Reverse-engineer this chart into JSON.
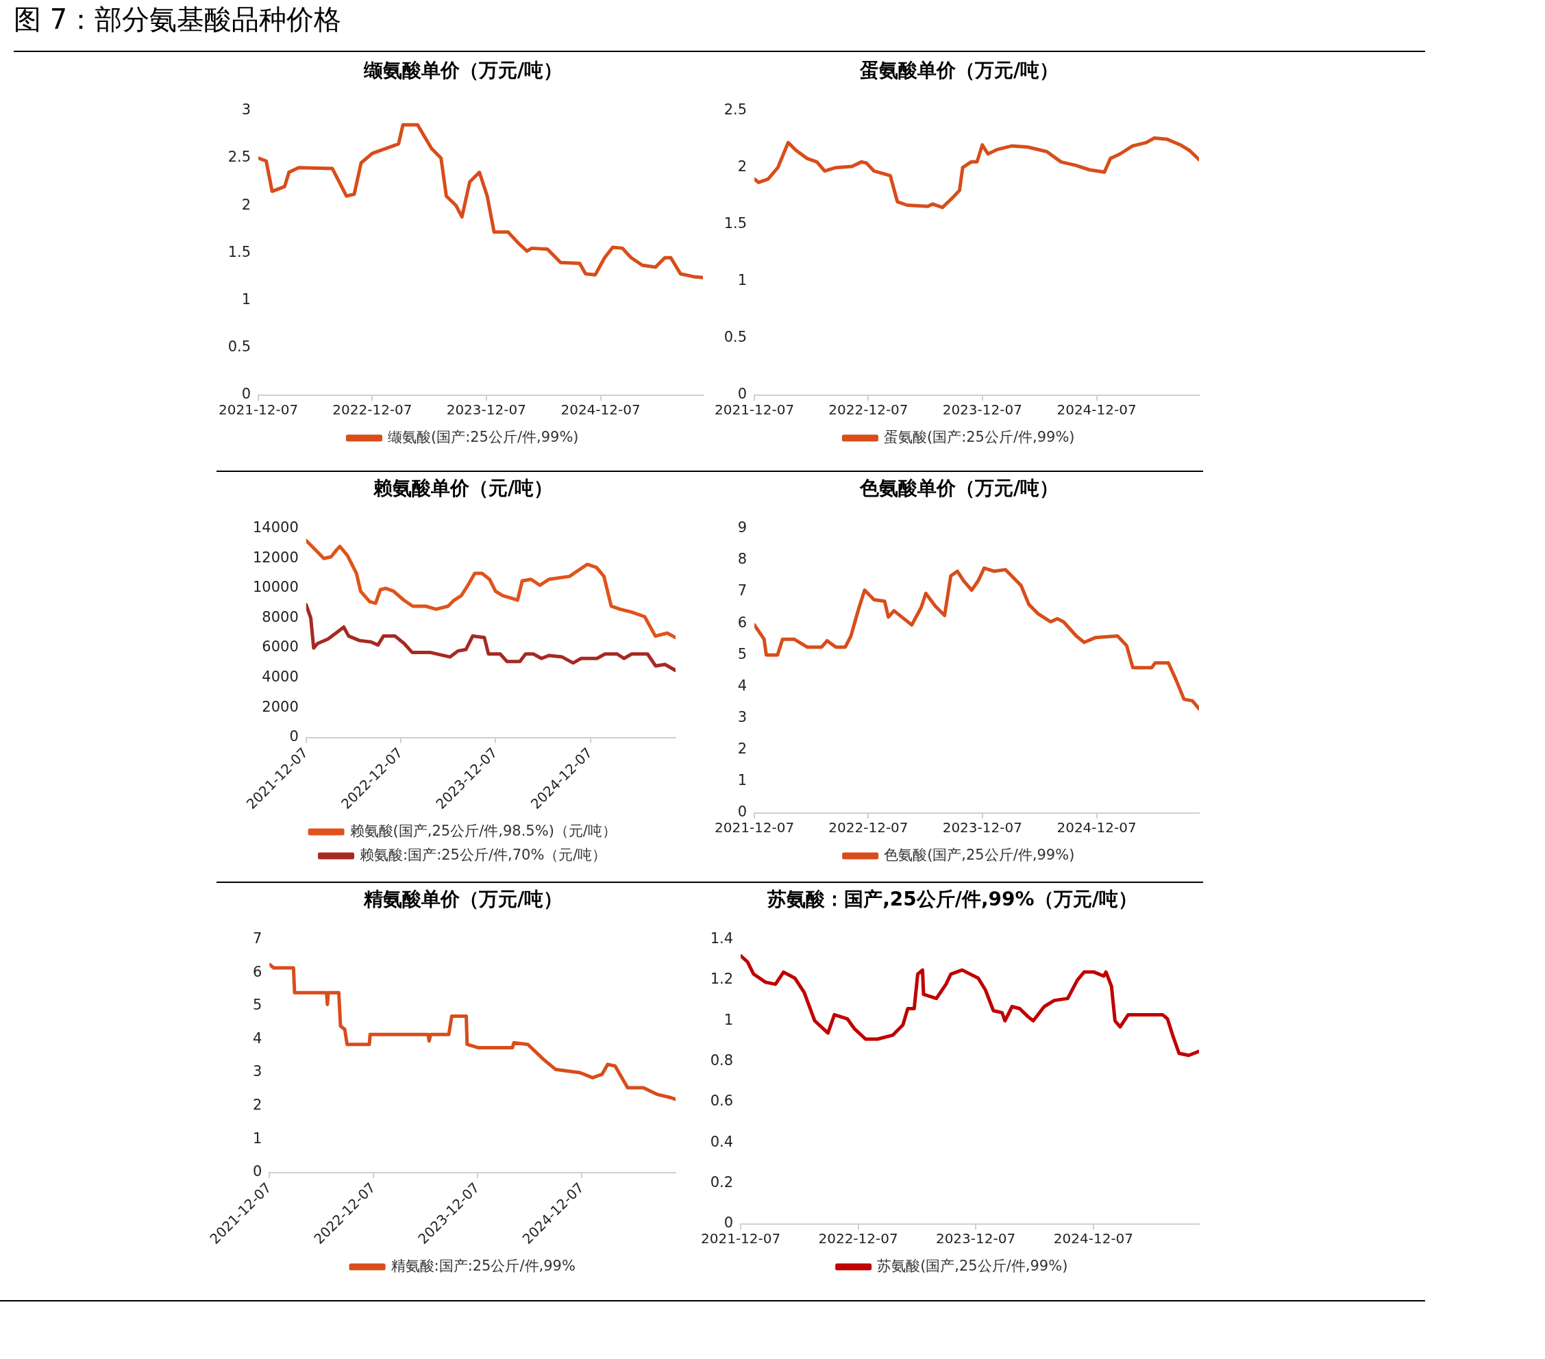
{
  "chart_data": [
    {
      "type": "line",
      "title": "缬氨酸单价（万元/吨）",
      "annotations": [
        "图 7：部分氨基酸品种价格"
      ],
      "legend": "bottom",
      "marker": "none",
      "xlim": [
        "2021-12-07",
        "2025-10-31"
      ],
      "xticks": [
        "2021-12-07",
        "2022-12-07",
        "2023-12-07",
        "2024-12-07"
      ],
      "ylim": [
        0,
        3
      ],
      "yticks": [
        0,
        0.5,
        1,
        1.5,
        2,
        2.5,
        3
      ],
      "series": [
        {
          "name": "缬氨酸(国产:25公斤/件,99%)",
          "color": "#d84d1a",
          "x": [
            "2021-12-07",
            "2022-01-01",
            "2022-01-20",
            "2022-03-01",
            "2022-03-15",
            "2022-04-15",
            "2022-08-01",
            "2022-09-15",
            "2022-10-10",
            "2022-11-01",
            "2022-12-07",
            "2023-03-01",
            "2023-03-15",
            "2023-05-01",
            "2023-06-15",
            "2023-07-15",
            "2023-08-01",
            "2023-09-01",
            "2023-09-20",
            "2023-10-15",
            "2023-11-15",
            "2023-12-10",
            "2024-01-01",
            "2024-02-15",
            "2024-03-20",
            "2024-04-15",
            "2024-05-01",
            "2024-06-20",
            "2024-08-01",
            "2024-10-01",
            "2024-10-20",
            "2024-11-20",
            "2024-12-20",
            "2025-01-15",
            "2025-02-15",
            "2025-03-15",
            "2025-04-20",
            "2025-06-01",
            "2025-07-01",
            "2025-07-20",
            "2025-08-20",
            "2025-10-01",
            "2025-10-31"
          ],
          "values": [
            2.5,
            2.47,
            2.15,
            2.2,
            2.35,
            2.4,
            2.39,
            2.1,
            2.12,
            2.45,
            2.55,
            2.65,
            2.85,
            2.85,
            2.6,
            2.5,
            2.1,
            2.0,
            1.88,
            2.25,
            2.35,
            2.1,
            1.72,
            1.72,
            1.6,
            1.52,
            1.55,
            1.54,
            1.4,
            1.39,
            1.28,
            1.27,
            1.45,
            1.56,
            1.55,
            1.45,
            1.37,
            1.35,
            1.45,
            1.45,
            1.28,
            1.25,
            1.24
          ]
        }
      ]
    },
    {
      "type": "line",
      "title": "蛋氨酸单价（万元/吨）",
      "legend": "bottom",
      "marker": "none",
      "xlim": [
        "2021-12-07",
        "2025-10-31"
      ],
      "xticks": [
        "2021-12-07",
        "2022-12-07",
        "2023-12-07",
        "2024-12-07"
      ],
      "ylim": [
        0,
        2.5
      ],
      "yticks": [
        0,
        0.5,
        1,
        1.5,
        2,
        2.5
      ],
      "series": [
        {
          "name": "蛋氨酸(国产:25公斤/件,99%)",
          "color": "#d84d1a",
          "x": [
            "2021-12-07",
            "2021-12-20",
            "2022-01-20",
            "2022-02-20",
            "2022-03-25",
            "2022-04-20",
            "2022-05-25",
            "2022-06-25",
            "2022-07-20",
            "2022-08-25",
            "2022-10-15",
            "2022-11-15",
            "2022-12-01",
            "2022-12-25",
            "2023-02-15",
            "2023-03-10",
            "2023-04-10",
            "2023-06-15",
            "2023-07-01",
            "2023-08-01",
            "2023-09-01",
            "2023-09-25",
            "2023-10-05",
            "2023-11-01",
            "2023-11-20",
            "2023-12-07",
            "2023-12-25",
            "2024-01-25",
            "2024-03-10",
            "2024-05-01",
            "2024-07-01",
            "2024-08-15",
            "2024-10-01",
            "2024-11-15",
            "2025-01-01",
            "2025-01-20",
            "2025-02-20",
            "2025-04-01",
            "2025-05-15",
            "2025-06-10",
            "2025-07-20",
            "2025-09-01",
            "2025-10-01",
            "2025-10-31"
          ],
          "values": [
            1.9,
            1.87,
            1.9,
            2.0,
            2.22,
            2.15,
            2.08,
            2.05,
            1.97,
            2.0,
            2.01,
            2.05,
            2.04,
            1.97,
            1.93,
            1.7,
            1.67,
            1.66,
            1.68,
            1.65,
            1.73,
            1.8,
            2.0,
            2.05,
            2.05,
            2.2,
            2.12,
            2.16,
            2.19,
            2.18,
            2.14,
            2.05,
            2.02,
            1.98,
            1.96,
            2.08,
            2.12,
            2.19,
            2.22,
            2.26,
            2.25,
            2.2,
            2.15,
            2.07
          ]
        }
      ]
    },
    {
      "type": "line",
      "title": "赖氨酸单价（元/吨）",
      "legend": "bottom",
      "marker": "none",
      "xlim": [
        "2021-12-07",
        "2025-10-31"
      ],
      "xticks": [
        "2021-12-07",
        "2022-12-07",
        "2023-12-07",
        "2024-12-07"
      ],
      "ylim": [
        0,
        14000
      ],
      "yticks": [
        0,
        2000,
        4000,
        6000,
        8000,
        10000,
        12000,
        14000
      ],
      "series": [
        {
          "name": "赖氨酸(国产,25公斤/件,98.5%)（元/吨）",
          "color": "#e0531b",
          "x": [
            "2021-12-07",
            "2022-01-16",
            "2022-02-13",
            "2022-03-13",
            "2022-04-05",
            "2022-04-16",
            "2022-05-15",
            "2022-06-19",
            "2022-07-05",
            "2022-08-09",
            "2022-09-01",
            "2022-09-19",
            "2022-10-10",
            "2022-11-09",
            "2022-12-19",
            "2023-01-22",
            "2023-03-13",
            "2023-04-22",
            "2023-06-07",
            "2023-06-30",
            "2023-07-28",
            "2023-08-26",
            "2023-09-18",
            "2023-10-16",
            "2023-11-14",
            "2023-12-07",
            "2024-01-04",
            "2024-02-14",
            "2024-03-01",
            "2024-03-19",
            "2024-04-22",
            "2024-05-26",
            "2024-06-30",
            "2024-09-18",
            "2024-10-04",
            "2024-11-25",
            "2024-12-30",
            "2025-01-28",
            "2025-02-25",
            "2025-03-31",
            "2025-05-15",
            "2025-07-04",
            "2025-08-14",
            "2025-09-29",
            "2025-10-31"
          ],
          "values": [
            13200,
            12500,
            12000,
            12100,
            12600,
            12800,
            12200,
            11000,
            9800,
            9100,
            9000,
            9900,
            10000,
            9800,
            9200,
            8800,
            8800,
            8600,
            8800,
            9200,
            9500,
            10300,
            11000,
            11000,
            10600,
            9800,
            9500,
            9300,
            9200,
            10500,
            10600,
            10200,
            10600,
            10800,
            11000,
            11600,
            11400,
            10800,
            8800,
            8600,
            8400,
            8100,
            6800,
            7000,
            6700
          ]
        },
        {
          "name": "赖氨酸:国产:25公斤/件,70%（元/吨）",
          "color": "#a52a22",
          "x": [
            "2021-12-07",
            "2021-12-25",
            "2022-01-05",
            "2022-01-20",
            "2022-03-01",
            "2022-04-01",
            "2022-05-01",
            "2022-05-20",
            "2022-07-01",
            "2022-08-15",
            "2022-09-10",
            "2022-10-01",
            "2022-11-15",
            "2022-12-20",
            "2023-01-20",
            "2023-04-01",
            "2023-06-15",
            "2023-07-15",
            "2023-08-15",
            "2023-09-10",
            "2023-10-25",
            "2023-11-10",
            "2023-12-25",
            "2024-01-20",
            "2024-03-10",
            "2024-04-01",
            "2024-05-01",
            "2024-06-01",
            "2024-07-01",
            "2024-08-20",
            "2024-10-01",
            "2024-11-01",
            "2025-01-01",
            "2025-02-01",
            "2025-03-20",
            "2025-04-15",
            "2025-05-15",
            "2025-07-15",
            "2025-08-15",
            "2025-09-20",
            "2025-10-31"
          ],
          "values": [
            8900,
            8000,
            6000,
            6300,
            6600,
            7000,
            7400,
            6800,
            6500,
            6400,
            6200,
            6800,
            6800,
            6300,
            5700,
            5700,
            5400,
            5800,
            5900,
            6800,
            6700,
            5600,
            5600,
            5100,
            5100,
            5600,
            5600,
            5300,
            5500,
            5400,
            5000,
            5300,
            5300,
            5600,
            5600,
            5300,
            5600,
            5600,
            4800,
            4900,
            4500
          ]
        }
      ]
    },
    {
      "type": "line",
      "title": "色氨酸单价（万元/吨）",
      "legend": "bottom",
      "marker": "none",
      "xlim": [
        "2021-12-07",
        "2025-10-31"
      ],
      "xticks": [
        "2021-12-07",
        "2022-12-07",
        "2023-12-07",
        "2024-12-07"
      ],
      "ylim": [
        0,
        9
      ],
      "yticks": [
        0,
        1,
        2,
        3,
        4,
        5,
        6,
        7,
        8,
        9
      ],
      "series": [
        {
          "name": "色氨酸(国产,25公斤/件,99%)",
          "color": "#d84d1a",
          "x": [
            "2021-12-07",
            "2022-01-07",
            "2022-01-14",
            "2022-02-19",
            "2022-03-07",
            "2022-04-13",
            "2022-05-25",
            "2022-07-10",
            "2022-07-28",
            "2022-08-25",
            "2022-09-24",
            "2022-10-12",
            "2022-11-07",
            "2022-11-25",
            "2022-12-25",
            "2023-01-28",
            "2023-02-09",
            "2023-02-27",
            "2023-04-25",
            "2023-05-25",
            "2023-06-09",
            "2023-07-09",
            "2023-08-08",
            "2023-08-28",
            "2023-09-18",
            "2023-10-08",
            "2023-11-03",
            "2023-11-24",
            "2023-12-13",
            "2024-01-13",
            "2024-02-19",
            "2024-03-25",
            "2024-04-09",
            "2024-05-04",
            "2024-06-03",
            "2024-07-13",
            "2024-08-03",
            "2024-08-23",
            "2024-10-03",
            "2024-10-28",
            "2024-12-03",
            "2025-02-12",
            "2025-03-13",
            "2025-04-02",
            "2025-06-02",
            "2025-06-12",
            "2025-07-25",
            "2025-08-19",
            "2025-09-13",
            "2025-10-10",
            "2025-10-31"
          ],
          "values": [
            5.95,
            5.5,
            5.0,
            5.0,
            5.5,
            5.5,
            5.25,
            5.25,
            5.45,
            5.25,
            5.25,
            5.6,
            6.5,
            7.05,
            6.75,
            6.7,
            6.2,
            6.4,
            5.95,
            6.5,
            6.95,
            6.55,
            6.25,
            7.5,
            7.65,
            7.35,
            7.05,
            7.35,
            7.75,
            7.65,
            7.7,
            7.35,
            7.2,
            6.6,
            6.3,
            6.05,
            6.15,
            6.05,
            5.6,
            5.4,
            5.55,
            5.6,
            5.3,
            4.6,
            4.6,
            4.75,
            4.75,
            4.2,
            3.6,
            3.55,
            3.3
          ]
        }
      ]
    },
    {
      "type": "line",
      "title": "精氨酸单价（万元/吨）",
      "legend": "bottom",
      "marker": "none",
      "xlim": [
        "2021-12-07",
        "2025-10-31"
      ],
      "xticks": [
        "2021-12-07",
        "2022-12-07",
        "2023-12-07",
        "2024-12-07"
      ],
      "ylim": [
        0,
        7
      ],
      "yticks": [
        0,
        1,
        2,
        3,
        4,
        5,
        6,
        7
      ],
      "series": [
        {
          "name": "精氨酸:国产:25公斤/件,99%",
          "color": "#d84d1a",
          "x": [
            "2021-12-07",
            "2021-12-22",
            "2022-03-01",
            "2022-03-05",
            "2022-06-25",
            "2022-06-28",
            "2022-07-01",
            "2022-08-07",
            "2022-08-13",
            "2022-08-28",
            "2022-09-05",
            "2022-11-22",
            "2022-11-25",
            "2023-06-16",
            "2023-06-20",
            "2023-06-25",
            "2023-08-28",
            "2023-09-07",
            "2023-10-28",
            "2023-10-31",
            "2023-12-10",
            "2024-04-07",
            "2024-04-12",
            "2024-05-31",
            "2024-07-25",
            "2024-09-05",
            "2024-11-30",
            "2025-01-13",
            "2025-02-15",
            "2025-03-07",
            "2025-04-02",
            "2025-05-16",
            "2025-07-10",
            "2025-08-27",
            "2025-10-15",
            "2025-10-31"
          ],
          "values": [
            6.25,
            6.15,
            6.15,
            5.4,
            5.4,
            5.05,
            5.4,
            5.4,
            4.4,
            4.3,
            3.85,
            3.85,
            4.15,
            4.15,
            3.95,
            4.15,
            4.15,
            4.7,
            4.7,
            3.85,
            3.75,
            3.75,
            3.9,
            3.85,
            3.4,
            3.1,
            3.0,
            2.85,
            2.95,
            3.25,
            3.2,
            2.55,
            2.55,
            2.35,
            2.25,
            2.2
          ]
        }
      ]
    },
    {
      "type": "line",
      "title": "苏氨酸：国产,25公斤/件,99%（万元/吨）",
      "legend": "bottom",
      "marker": "none",
      "xlim": [
        "2021-12-07",
        "2025-10-31"
      ],
      "xticks": [
        "2021-12-07",
        "2022-12-07",
        "2023-12-07",
        "2024-12-07"
      ],
      "ylim": [
        0,
        1.4
      ],
      "yticks": [
        0,
        0.2,
        0.4,
        0.6,
        0.8,
        1,
        1.2,
        1.4
      ],
      "series": [
        {
          "name": "苏氨酸(国产,25公斤/件,99%)",
          "color": "#c00000",
          "x": [
            "2021-12-07",
            "2021-12-28",
            "2022-01-16",
            "2022-02-22",
            "2022-03-25",
            "2022-04-19",
            "2022-05-24",
            "2022-06-22",
            "2022-07-25",
            "2022-09-04",
            "2022-09-24",
            "2022-11-03",
            "2022-11-26",
            "2022-12-30",
            "2023-02-05",
            "2023-03-25",
            "2023-04-25",
            "2023-05-10",
            "2023-05-30",
            "2023-06-10",
            "2023-06-25",
            "2023-06-28",
            "2023-08-07",
            "2023-09-06",
            "2023-09-21",
            "2023-10-26",
            "2023-12-15",
            "2024-01-07",
            "2024-01-31",
            "2024-02-27",
            "2024-03-07",
            "2024-03-29",
            "2024-04-22",
            "2024-05-18",
            "2024-06-03",
            "2024-07-07",
            "2024-08-07",
            "2024-09-18",
            "2024-10-18",
            "2024-11-08",
            "2024-12-09",
            "2025-01-08",
            "2025-01-15",
            "2025-02-01",
            "2025-02-12",
            "2025-02-28",
            "2025-03-25",
            "2025-07-10",
            "2025-07-25",
            "2025-08-10",
            "2025-08-30",
            "2025-09-29",
            "2025-10-31"
          ],
          "values": [
            1.32,
            1.29,
            1.23,
            1.19,
            1.18,
            1.24,
            1.21,
            1.14,
            1.0,
            0.94,
            1.03,
            1.01,
            0.96,
            0.91,
            0.91,
            0.93,
            0.98,
            1.06,
            1.06,
            1.23,
            1.25,
            1.13,
            1.11,
            1.18,
            1.23,
            1.25,
            1.21,
            1.15,
            1.05,
            1.04,
            1.0,
            1.07,
            1.06,
            1.02,
            1.0,
            1.07,
            1.1,
            1.11,
            1.2,
            1.24,
            1.24,
            1.22,
            1.24,
            1.17,
            1.0,
            0.97,
            1.03,
            1.03,
            1.01,
            0.93,
            0.84,
            0.83,
            0.85
          ]
        }
      ]
    }
  ]
}
